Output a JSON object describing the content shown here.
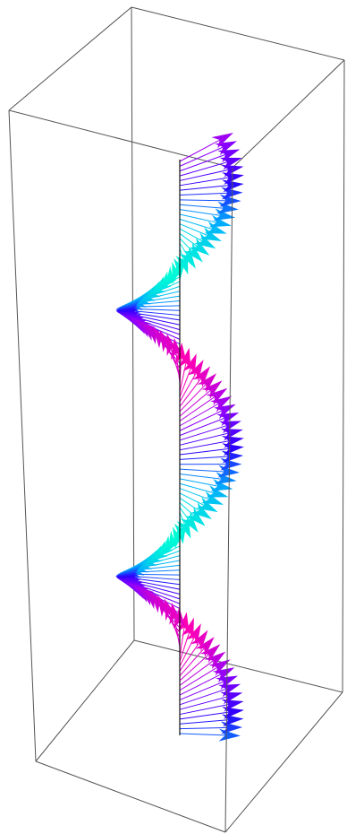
{
  "chart_data": {
    "type": "3d-vector-helix",
    "title": "",
    "axes_shown": false,
    "box_shown": true,
    "vector_count": 120,
    "turns": 2.15,
    "color_stops": [
      "#ff00b4",
      "#8a00ff",
      "#2a00ff",
      "#00a8ff",
      "#00ffd5"
    ],
    "colors": {
      "background": "#ffffff",
      "box": "#555555",
      "axis": "#111111"
    }
  }
}
